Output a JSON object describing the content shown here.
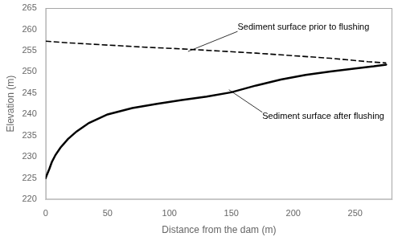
{
  "chart_data": {
    "type": "line",
    "xlabel": "Distance from the dam (m)",
    "ylabel": "Elevation (m)",
    "xlim": [
      0,
      280
    ],
    "ylim": [
      220,
      265
    ],
    "xticks": [
      0,
      50,
      100,
      150,
      200,
      250
    ],
    "yticks": [
      220,
      225,
      230,
      235,
      240,
      245,
      250,
      255,
      260,
      265
    ],
    "grid": false,
    "series": [
      {
        "x": [
          0,
          20,
          50,
          80,
          110,
          140,
          170,
          200,
          230,
          260,
          275
        ],
        "values": [
          257.2,
          256.8,
          256.3,
          255.8,
          255.4,
          254.9,
          254.4,
          253.8,
          253.2,
          252.4,
          252.1
        ],
        "color": "#000000",
        "line_style": "dashed"
      },
      {
        "x": [
          0,
          1,
          3,
          5,
          8,
          12,
          18,
          25,
          35,
          50,
          70,
          90,
          110,
          130,
          150,
          170,
          190,
          210,
          230,
          250,
          265,
          275
        ],
        "values": [
          225.0,
          225.8,
          227.2,
          228.8,
          230.5,
          232.2,
          234.2,
          236.0,
          238.0,
          240.0,
          241.5,
          242.5,
          243.4,
          244.2,
          245.2,
          246.8,
          248.2,
          249.3,
          250.1,
          250.8,
          251.3,
          251.7
        ],
        "color": "#000000",
        "line_style": "solid"
      }
    ],
    "annotations": [
      {
        "text": "Sediment surface prior to flushing",
        "x": 115,
        "y": 254.8,
        "text_x": 155,
        "text_y": 259.5,
        "color": "#000000"
      },
      {
        "text": "Sediment surface after flushing",
        "x": 148,
        "y": 245.8,
        "text_x": 175,
        "text_y": 240.5,
        "color": "#000000"
      }
    ]
  }
}
